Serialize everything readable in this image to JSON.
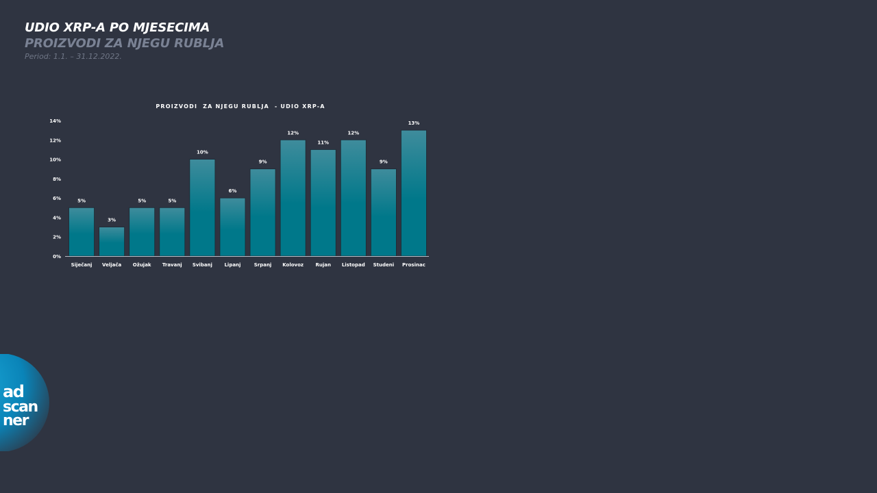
{
  "header": {
    "title": "UDIO XRP-A PO MJESECIMA",
    "subtitle": "PROIZVODI ZA NJEGU RUBLJA",
    "period": "Period: 1.1. – 31.12.2022."
  },
  "logo": {
    "line1": "ad",
    "line2": "scan",
    "line3": "ner"
  },
  "colors": {
    "background": "#2f3441",
    "bar_top": "#3f8c9c",
    "bar_bottom": "#00788a",
    "text": "#ffffff"
  },
  "chart_data": {
    "type": "bar",
    "title": "PROIZVODI  ZA NJEGU RUBLJA  - UDIO XRP-A",
    "categories": [
      "Siječanj",
      "Veljača",
      "Ožujak",
      "Travanj",
      "Svibanj",
      "Lipanj",
      "Srpanj",
      "Kolovoz",
      "Rujan",
      "Listopad",
      "Studeni",
      "Prosinac"
    ],
    "values": [
      5,
      3,
      5,
      5,
      10,
      6,
      9,
      12,
      11,
      12,
      9,
      13
    ],
    "value_labels": [
      "5%",
      "3%",
      "5%",
      "5%",
      "10%",
      "6%",
      "9%",
      "12%",
      "11%",
      "12%",
      "9%",
      "13%"
    ],
    "y_ticks": [
      "0%",
      "2%",
      "4%",
      "6%",
      "8%",
      "10%",
      "12%",
      "14%"
    ],
    "ylim": [
      0,
      14
    ],
    "xlabel": "",
    "ylabel": "",
    "grid": false,
    "legend": "none"
  }
}
